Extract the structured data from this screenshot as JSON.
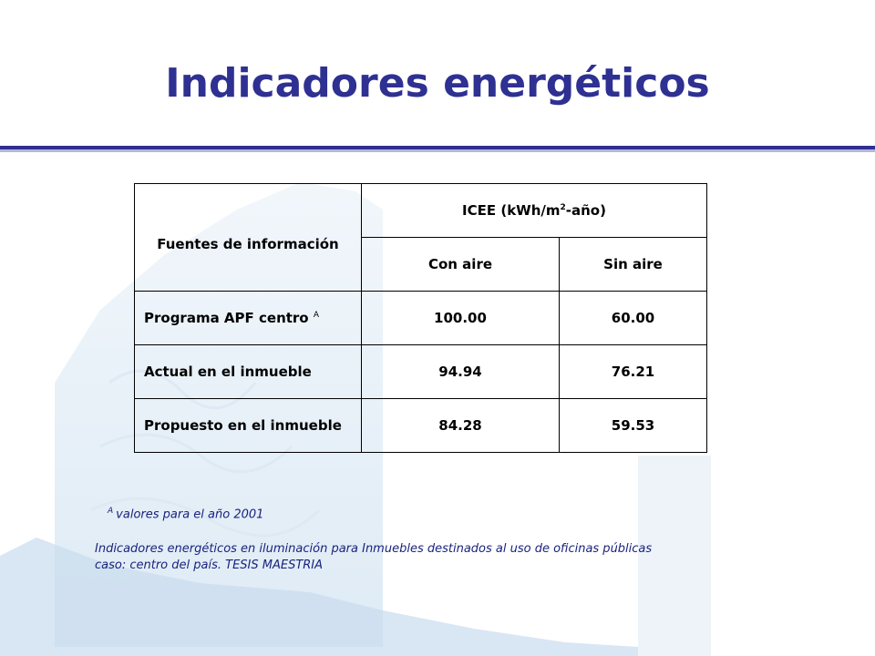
{
  "title": "Indicadores energéticos",
  "colors": {
    "title": "#2e3092",
    "rule": "#2e3092",
    "caption": "#1a237e"
  },
  "table": {
    "header_source": "Fuentes de información",
    "header_icee": "ICEE (kWh/m",
    "header_icee_sup": "2",
    "header_icee_tail": "-año)",
    "sub_con": "Con aire",
    "sub_sin": "Sin aire",
    "rows": [
      {
        "label": "Programa APF centro",
        "sup": "A",
        "con": "100.00",
        "sin": "60.00"
      },
      {
        "label": "Actual en el inmueble",
        "sup": "",
        "con": "94.94",
        "sin": "76.21"
      },
      {
        "label": "Propuesto en el inmueble",
        "sup": "",
        "con": "84.28",
        "sin": "59.53"
      }
    ]
  },
  "footnote": {
    "mark": "A",
    "text": "valores para el año 2001"
  },
  "caption": {
    "line1": "Indicadores energéticos en iluminación para Inmuebles destinados al uso de oficinas públicas",
    "line2": "caso: centro del país. TESIS MAESTRIA"
  }
}
